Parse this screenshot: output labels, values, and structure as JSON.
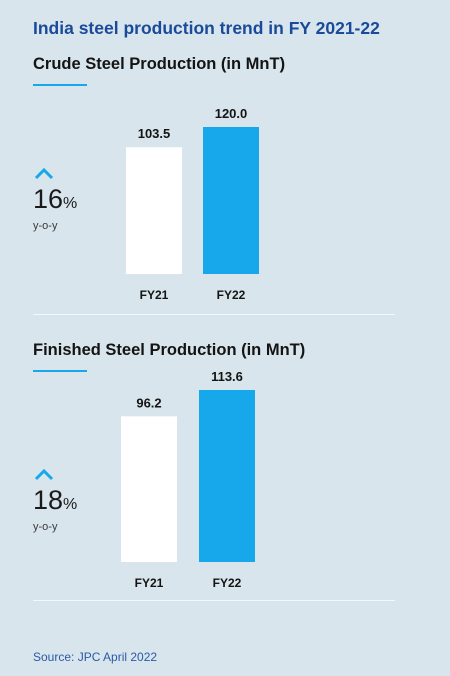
{
  "title": "India steel production trend in FY 2021-22",
  "source": "Source: JPC April 2022",
  "colors": {
    "fy21": "#ffffff",
    "fy22": "#16a8ea",
    "accent": "#16a8ea",
    "title": "#1a4a9a"
  },
  "icon": "chevron-up-icon",
  "chart_data": [
    {
      "type": "bar",
      "title": "Crude Steel Production (in MnT)",
      "categories": [
        "FY21",
        "FY22"
      ],
      "values": [
        103.5,
        120.0
      ],
      "value_labels": [
        "103.5",
        "120.0"
      ],
      "growth": {
        "value": "16",
        "unit": "%",
        "label": "y-o-y"
      },
      "ylim": [
        0,
        120
      ]
    },
    {
      "type": "bar",
      "title": "Finished Steel Production (in MnT)",
      "categories": [
        "FY21",
        "FY22"
      ],
      "values": [
        96.2,
        113.6
      ],
      "value_labels": [
        "96.2",
        "113.6"
      ],
      "growth": {
        "value": "18",
        "unit": "%",
        "label": "y-o-y"
      },
      "ylim": [
        0,
        113.6
      ]
    }
  ]
}
